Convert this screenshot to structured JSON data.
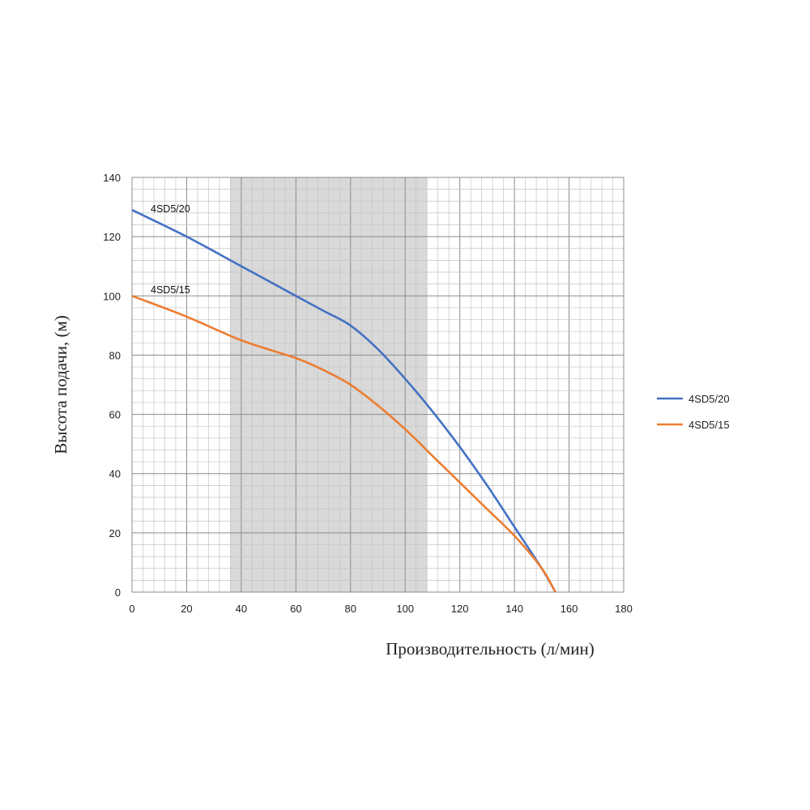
{
  "chart_data": {
    "type": "line",
    "xlabel": "Производительность (л/мин)",
    "ylabel": "Высота подачи, (м)",
    "xlim": [
      0,
      180
    ],
    "ylim": [
      0,
      140
    ],
    "x_ticks": [
      0,
      20,
      40,
      60,
      80,
      100,
      120,
      140,
      160,
      180
    ],
    "y_ticks": [
      0,
      20,
      40,
      60,
      80,
      100,
      120,
      140
    ],
    "grid": true,
    "highlight_range_x": [
      36,
      108
    ],
    "legend": {
      "placement": "right"
    },
    "series": [
      {
        "name": "4SD5/20",
        "color": "#4472C4",
        "x": [
          0,
          20,
          40,
          60,
          70,
          80,
          90,
          100,
          110,
          120,
          130,
          140,
          150,
          155
        ],
        "y": [
          129,
          120,
          110,
          100,
          95,
          90,
          82,
          72,
          61,
          49,
          36,
          22,
          8,
          0
        ]
      },
      {
        "name": "4SD5/15",
        "color": "#ED7D31",
        "x": [
          0,
          20,
          40,
          60,
          70,
          80,
          90,
          100,
          110,
          120,
          130,
          140,
          150,
          155
        ],
        "y": [
          100,
          93,
          85,
          79,
          75,
          70,
          63,
          55,
          46,
          37,
          28,
          19,
          8,
          0
        ]
      }
    ]
  }
}
